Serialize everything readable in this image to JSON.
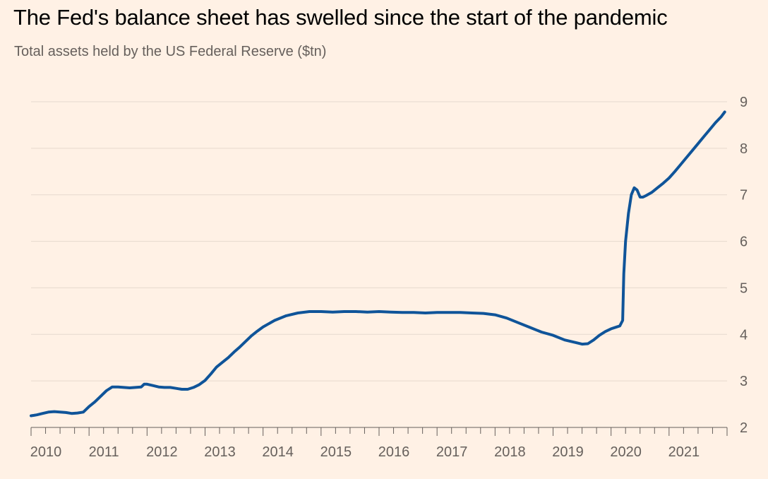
{
  "colors": {
    "background": "#fff1e5",
    "line": "#0f5499",
    "grid": "#e6d9ce",
    "axis": "#66605c",
    "title": "#000000",
    "text": "#66605c"
  },
  "chart_data": {
    "type": "line",
    "title": "The Fed's balance sheet has swelled since the start of the pandemic",
    "subtitle": "Total assets held by the US Federal Reserve ($tn)",
    "xlabel": "",
    "ylabel": "",
    "x_range": [
      2010.0,
      2022.0
    ],
    "ylim": [
      2,
      9
    ],
    "y_ticks": [
      2,
      3,
      4,
      5,
      6,
      7,
      8,
      9
    ],
    "y_tick_labels": [
      "2",
      "3",
      "4",
      "5",
      "6",
      "7",
      "8",
      "9"
    ],
    "y_axis_side": "right",
    "grid": true,
    "x_ticks": [
      2010,
      2011,
      2012,
      2013,
      2014,
      2015,
      2016,
      2017,
      2018,
      2019,
      2020,
      2021
    ],
    "x_tick_labels": [
      "2010",
      "2011",
      "2012",
      "2013",
      "2014",
      "2015",
      "2016",
      "2017",
      "2018",
      "2019",
      "2020",
      "2021"
    ],
    "minor_x_ticks_per_year": 4,
    "series": [
      {
        "x": [
          2010.0,
          2010.05,
          2010.1,
          2010.2,
          2010.3,
          2010.4,
          2010.5,
          2010.6,
          2010.7,
          2010.8,
          2010.9,
          2011.0,
          2011.1,
          2011.2,
          2011.3,
          2011.4,
          2011.5,
          2011.6,
          2011.7,
          2011.8,
          2011.9,
          2011.95,
          2012.0,
          2012.1,
          2012.2,
          2012.3,
          2012.4,
          2012.5,
          2012.6,
          2012.7,
          2012.8,
          2012.9,
          2013.0,
          2013.1,
          2013.2,
          2013.3,
          2013.4,
          2013.5,
          2013.6,
          2013.7,
          2013.8,
          2013.9,
          2014.0,
          2014.2,
          2014.4,
          2014.6,
          2014.8,
          2015.0,
          2015.2,
          2015.4,
          2015.6,
          2015.8,
          2016.0,
          2016.2,
          2016.4,
          2016.6,
          2016.8,
          2017.0,
          2017.2,
          2017.4,
          2017.6,
          2017.8,
          2018.0,
          2018.2,
          2018.4,
          2018.6,
          2018.8,
          2019.0,
          2019.2,
          2019.4,
          2019.5,
          2019.6,
          2019.7,
          2019.8,
          2019.9,
          2020.0,
          2020.1,
          2020.15,
          2020.2,
          2020.22,
          2020.25,
          2020.3,
          2020.35,
          2020.4,
          2020.45,
          2020.5,
          2020.55,
          2020.6,
          2020.7,
          2020.8,
          2020.9,
          2021.0,
          2021.1,
          2021.2,
          2021.3,
          2021.4,
          2021.5,
          2021.6,
          2021.7,
          2021.8,
          2021.9,
          2021.96
        ],
        "y": [
          2.25,
          2.26,
          2.27,
          2.3,
          2.33,
          2.34,
          2.33,
          2.32,
          2.3,
          2.31,
          2.33,
          2.45,
          2.55,
          2.67,
          2.79,
          2.87,
          2.87,
          2.86,
          2.85,
          2.86,
          2.87,
          2.93,
          2.93,
          2.9,
          2.87,
          2.86,
          2.86,
          2.84,
          2.82,
          2.82,
          2.86,
          2.92,
          3.01,
          3.15,
          3.3,
          3.4,
          3.5,
          3.62,
          3.73,
          3.85,
          3.97,
          4.07,
          4.16,
          4.3,
          4.4,
          4.46,
          4.49,
          4.49,
          4.48,
          4.49,
          4.49,
          4.48,
          4.49,
          4.48,
          4.47,
          4.47,
          4.46,
          4.47,
          4.47,
          4.47,
          4.46,
          4.45,
          4.42,
          4.35,
          4.25,
          4.15,
          4.05,
          3.98,
          3.88,
          3.82,
          3.79,
          3.8,
          3.88,
          3.98,
          4.06,
          4.12,
          4.16,
          4.18,
          4.3,
          5.3,
          6.0,
          6.6,
          7.0,
          7.15,
          7.1,
          6.95,
          6.95,
          6.98,
          7.05,
          7.15,
          7.25,
          7.36,
          7.5,
          7.65,
          7.8,
          7.95,
          8.1,
          8.25,
          8.4,
          8.55,
          8.68,
          8.78
        ]
      }
    ]
  }
}
